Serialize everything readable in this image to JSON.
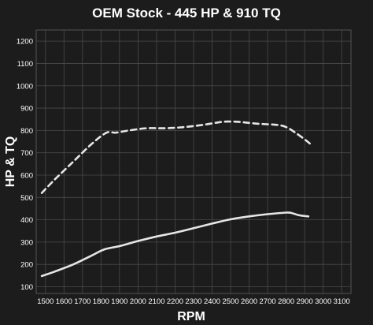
{
  "chart_data": {
    "type": "line",
    "title": "OEM Stock - 445 HP & 910 TQ",
    "xlabel": "RPM",
    "ylabel": "HP & TQ",
    "xlim": [
      1450,
      3150
    ],
    "ylim": [
      70,
      1250
    ],
    "x_ticks": [
      1500,
      1600,
      1700,
      1800,
      1900,
      2000,
      2100,
      2200,
      2300,
      2400,
      2500,
      2600,
      2700,
      2800,
      2900,
      3000,
      3100
    ],
    "y_ticks": [
      100,
      200,
      300,
      400,
      500,
      600,
      700,
      800,
      900,
      1000,
      1100,
      1200
    ],
    "grid": true,
    "legend": "none",
    "colors": {
      "background": "#1c1c1c",
      "grid": "#4a4a4a",
      "line": "#e6e6e6"
    },
    "series": [
      {
        "style": "dashed",
        "x": [
          1480,
          1550,
          1650,
          1750,
          1830,
          1880,
          1950,
          2050,
          2150,
          2250,
          2350,
          2450,
          2500,
          2550,
          2650,
          2750,
          2800,
          2850,
          2900,
          2930
        ],
        "y": [
          520,
          580,
          660,
          740,
          790,
          790,
          800,
          810,
          810,
          815,
          825,
          838,
          840,
          838,
          830,
          825,
          815,
          790,
          760,
          740
        ]
      },
      {
        "style": "solid",
        "x": [
          1480,
          1550,
          1650,
          1750,
          1820,
          1900,
          2000,
          2100,
          2200,
          2300,
          2400,
          2500,
          2600,
          2700,
          2800,
          2830,
          2870,
          2920
        ],
        "y": [
          148,
          168,
          200,
          240,
          268,
          282,
          305,
          325,
          342,
          362,
          383,
          402,
          415,
          425,
          432,
          430,
          420,
          415
        ]
      }
    ]
  }
}
